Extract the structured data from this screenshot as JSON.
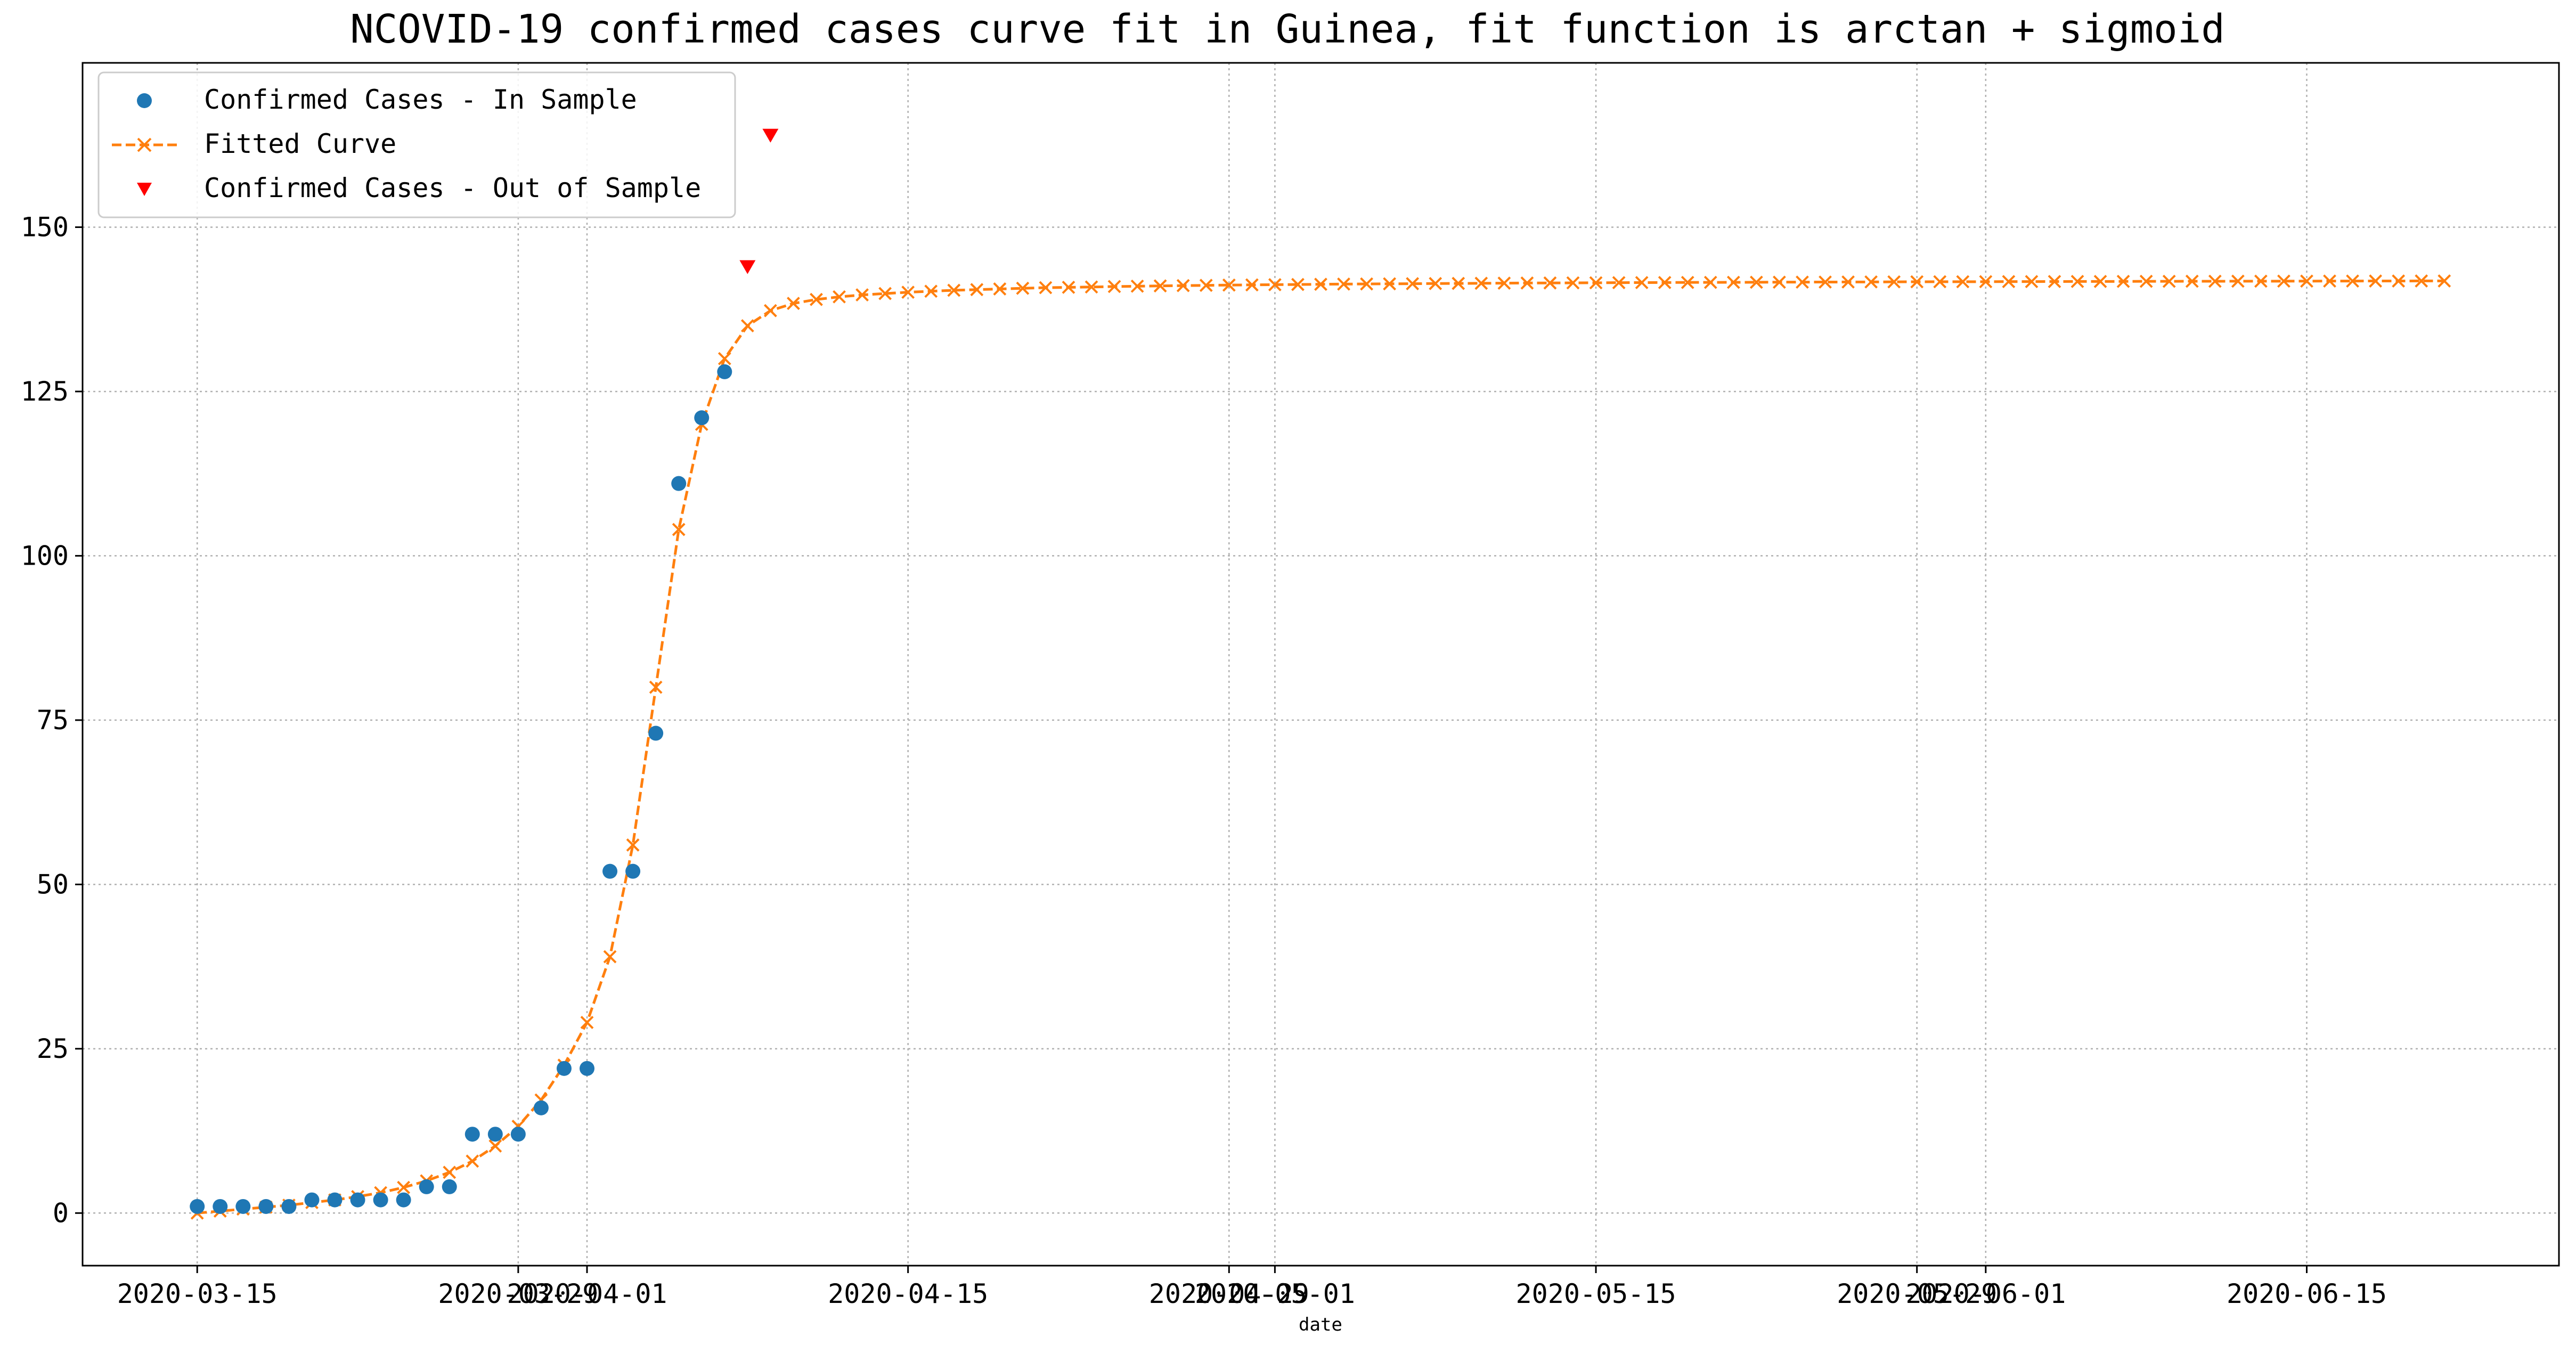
{
  "chart_data": {
    "type": "line",
    "title": "NCOVID-19 confirmed cases curve fit in Guinea, fit function is arctan + sigmoid",
    "xlabel": "date",
    "ylabel": "",
    "x_start_date": "2020-03-15",
    "xlim_days": [
      -5,
      103
    ],
    "ylim": [
      -8,
      175
    ],
    "grid": true,
    "legend_position": "top-left",
    "y_ticks": [
      0,
      25,
      50,
      75,
      100,
      125,
      150
    ],
    "x_ticks": [
      {
        "day": 0,
        "label": "2020-03-15"
      },
      {
        "day": 14,
        "label": "2020-03-29"
      },
      {
        "day": 17,
        "label": "2020-04-01"
      },
      {
        "day": 31,
        "label": "2020-04-15"
      },
      {
        "day": 45,
        "label": "2020-04-29"
      },
      {
        "day": 47,
        "label": "2020-05-01"
      },
      {
        "day": 61,
        "label": "2020-05-15"
      },
      {
        "day": 75,
        "label": "2020-05-29"
      },
      {
        "day": 78,
        "label": "2020-06-01"
      },
      {
        "day": 92,
        "label": "2020-06-15"
      }
    ],
    "legend": [
      {
        "label": "Confirmed Cases - In Sample",
        "marker": "circle",
        "color": "#1f77b4"
      },
      {
        "label": "Fitted Curve",
        "marker": "x-dashed",
        "color": "#ff7f0e"
      },
      {
        "label": "Confirmed Cases - Out of Sample",
        "marker": "triangle-down",
        "color": "#ff0000"
      }
    ],
    "series": [
      {
        "name": "Confirmed Cases - In Sample",
        "color": "#1f77b4",
        "start_day": 0,
        "values": [
          1,
          1,
          1,
          1,
          1,
          2,
          2,
          2,
          2,
          2,
          4,
          4,
          12,
          12,
          12,
          16,
          22,
          22,
          52,
          52,
          73,
          111,
          121,
          128
        ]
      },
      {
        "name": "Confirmed Cases - Out of Sample",
        "color": "#ff0000",
        "start_day": 24,
        "values": [
          144,
          164
        ]
      },
      {
        "name": "Fitted Curve",
        "color": "#ff7f0e",
        "start_day": 0,
        "values": [
          0.0,
          0.3,
          0.6,
          0.9,
          1.2,
          1.6,
          2.0,
          2.5,
          3.1,
          3.9,
          4.9,
          6.2,
          7.9,
          10.2,
          13.2,
          17.2,
          22.5,
          29.0,
          39.0,
          56.0,
          80.0,
          104.0,
          120.0,
          130.0,
          135.0,
          137.3,
          138.4,
          139.0,
          139.4,
          139.7,
          139.9,
          140.1,
          140.25,
          140.4,
          140.5,
          140.6,
          140.7,
          140.8,
          140.85,
          140.9,
          140.97,
          141.02,
          141.07,
          141.11,
          141.15,
          141.19,
          141.22,
          141.25,
          141.28,
          141.31,
          141.34,
          141.36,
          141.38,
          141.4,
          141.42,
          141.44,
          141.46,
          141.48,
          141.5,
          141.51,
          141.53,
          141.54,
          141.56,
          141.57,
          141.58,
          141.59,
          141.6,
          141.61,
          141.62,
          141.63,
          141.64,
          141.65,
          141.66,
          141.67,
          141.68,
          141.69,
          141.7,
          141.7,
          141.71,
          141.72,
          141.72,
          141.73,
          141.74,
          141.74,
          141.75,
          141.76,
          141.76,
          141.77,
          141.77,
          141.78,
          141.78,
          141.79,
          141.79,
          141.8,
          141.8,
          141.81,
          141.81,
          141.82,
          141.82
        ]
      }
    ]
  }
}
